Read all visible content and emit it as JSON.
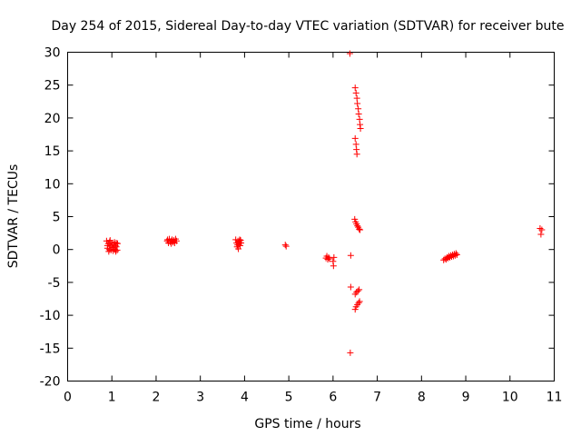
{
  "chart_data": {
    "type": "scatter",
    "title": "Day 254 of 2015, Sidereal Day-to-day VTEC variation (SDTVAR) for receiver bute",
    "xlabel": "GPS time / hours",
    "ylabel": "SDTVAR / TECUs",
    "xlim": [
      0,
      11
    ],
    "ylim": [
      -20,
      30
    ],
    "xticks": [
      "0",
      "1",
      "2",
      "3",
      "4",
      "5",
      "6",
      "7",
      "8",
      "9",
      "10",
      "11"
    ],
    "yticks": [
      "-20",
      "-15",
      "-10",
      "-5",
      "0",
      "5",
      "10",
      "15",
      "20",
      "25",
      "30"
    ],
    "grid": false,
    "marker": "+",
    "color": "#ff0000",
    "series": [
      {
        "name": "SDTVAR",
        "points": [
          [
            0.88,
            1.3
          ],
          [
            0.9,
            0.2
          ],
          [
            0.92,
            0.9
          ],
          [
            0.93,
            -0.3
          ],
          [
            0.95,
            1.2
          ],
          [
            0.97,
            0.5
          ],
          [
            0.98,
            -0.1
          ],
          [
            1.0,
            1.0
          ],
          [
            1.02,
            0.3
          ],
          [
            1.03,
            -0.2
          ],
          [
            1.05,
            0.8
          ],
          [
            1.06,
            1.1
          ],
          [
            1.07,
            0.0
          ],
          [
            1.08,
            0.6
          ],
          [
            1.1,
            0.4
          ],
          [
            1.1,
            1.0
          ],
          [
            1.12,
            -0.1
          ],
          [
            1.13,
            0.9
          ],
          [
            0.9,
            0.6
          ],
          [
            1.0,
            0.7
          ],
          [
            1.04,
            0.1
          ],
          [
            0.96,
            1.4
          ],
          [
            1.09,
            -0.3
          ],
          [
            0.94,
            0.0
          ],
          [
            2.25,
            1.3
          ],
          [
            2.28,
            1.0
          ],
          [
            2.3,
            1.6
          ],
          [
            2.32,
            1.2
          ],
          [
            2.34,
            0.9
          ],
          [
            2.36,
            1.5
          ],
          [
            2.38,
            1.1
          ],
          [
            2.4,
            1.4
          ],
          [
            2.42,
            1.0
          ],
          [
            2.44,
            1.6
          ],
          [
            2.46,
            1.3
          ],
          [
            2.26,
            1.5
          ],
          [
            2.35,
            1.3
          ],
          [
            3.8,
            1.5
          ],
          [
            3.82,
            1.0
          ],
          [
            3.83,
            0.4
          ],
          [
            3.85,
            1.3
          ],
          [
            3.86,
            0.1
          ],
          [
            3.87,
            0.8
          ],
          [
            3.88,
            1.2
          ],
          [
            3.9,
            0.6
          ],
          [
            3.91,
            1.4
          ],
          [
            3.92,
            1.0
          ],
          [
            3.84,
            0.7
          ],
          [
            3.89,
            1.5
          ],
          [
            4.92,
            0.7
          ],
          [
            4.94,
            0.5
          ],
          [
            5.84,
            -1.3
          ],
          [
            5.86,
            -1.0
          ],
          [
            5.88,
            -1.5
          ],
          [
            5.9,
            -1.2
          ],
          [
            5.92,
            -1.4
          ],
          [
            6.0,
            -1.8
          ],
          [
            6.01,
            -2.5
          ],
          [
            6.02,
            -1.2
          ],
          [
            6.38,
            29.8
          ],
          [
            6.4,
            -0.9
          ],
          [
            6.4,
            -5.7
          ],
          [
            6.39,
            -15.7
          ],
          [
            6.5,
            24.6
          ],
          [
            6.52,
            23.8
          ],
          [
            6.54,
            23.0
          ],
          [
            6.55,
            22.2
          ],
          [
            6.57,
            21.4
          ],
          [
            6.58,
            20.6
          ],
          [
            6.6,
            19.8
          ],
          [
            6.61,
            19.0
          ],
          [
            6.62,
            18.4
          ],
          [
            6.5,
            16.9
          ],
          [
            6.52,
            16.0
          ],
          [
            6.53,
            15.2
          ],
          [
            6.54,
            14.5
          ],
          [
            6.49,
            4.6
          ],
          [
            6.51,
            4.2
          ],
          [
            6.53,
            3.9
          ],
          [
            6.55,
            3.6
          ],
          [
            6.57,
            3.4
          ],
          [
            6.59,
            3.1
          ],
          [
            6.61,
            3.0
          ],
          [
            6.5,
            -6.8
          ],
          [
            6.53,
            -6.5
          ],
          [
            6.56,
            -6.3
          ],
          [
            6.59,
            -6.1
          ],
          [
            6.5,
            -9.1
          ],
          [
            6.52,
            -8.7
          ],
          [
            6.55,
            -8.4
          ],
          [
            6.58,
            -8.1
          ],
          [
            6.6,
            -7.9
          ],
          [
            8.5,
            -1.6
          ],
          [
            8.53,
            -1.4
          ],
          [
            8.56,
            -1.5
          ],
          [
            8.58,
            -1.2
          ],
          [
            8.6,
            -1.3
          ],
          [
            8.62,
            -1.0
          ],
          [
            8.64,
            -1.2
          ],
          [
            8.66,
            -0.9
          ],
          [
            8.68,
            -1.1
          ],
          [
            8.7,
            -0.8
          ],
          [
            8.72,
            -1.0
          ],
          [
            8.74,
            -0.7
          ],
          [
            8.76,
            -0.9
          ],
          [
            8.78,
            -0.6
          ],
          [
            8.8,
            -0.8
          ],
          [
            10.68,
            3.2
          ],
          [
            10.7,
            2.3
          ],
          [
            10.72,
            3.0
          ]
        ]
      }
    ]
  }
}
